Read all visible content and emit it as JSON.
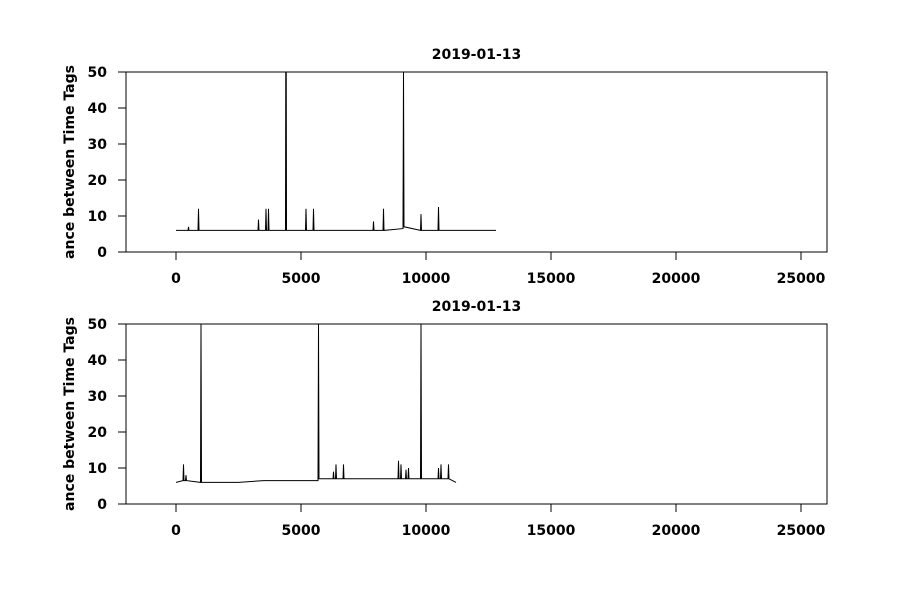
{
  "chart_data": [
    {
      "type": "line",
      "title": "2019-01-13",
      "y_label": "ance between Time Tags",
      "color": "#000000",
      "x": [
        0,
        480,
        500,
        520,
        880,
        900,
        920,
        3280,
        3300,
        3320,
        3580,
        3600,
        3620,
        3680,
        3700,
        3720,
        4380,
        4390,
        4400,
        4410,
        4420,
        5180,
        5200,
        5220,
        5480,
        5500,
        5520,
        7880,
        7900,
        7920,
        8280,
        8300,
        8320,
        9080,
        9100,
        9120,
        9780,
        9800,
        9820,
        10480,
        10500,
        10520,
        12800
      ],
      "values": [
        6,
        6,
        7,
        6,
        6,
        12,
        6,
        6,
        9,
        6,
        6,
        12,
        6,
        6,
        12,
        6,
        6,
        50,
        6,
        50,
        6,
        6,
        12,
        6,
        6,
        12,
        6,
        6,
        8.5,
        6,
        6,
        12,
        6,
        6.5,
        50,
        7,
        6,
        10.5,
        6,
        6,
        12.5,
        6,
        6
      ],
      "xlim": [
        -2000,
        26040
      ],
      "xticks": [
        0,
        5000,
        10000,
        15000,
        20000,
        25000
      ],
      "ylim": [
        0,
        50
      ],
      "yticks": [
        0,
        10,
        20,
        30,
        40,
        50
      ]
    },
    {
      "type": "line",
      "title": "2019-01-13",
      "y_label": "ance between Time Tags",
      "color": "#000000",
      "x": [
        0,
        280,
        300,
        320,
        380,
        400,
        420,
        980,
        1000,
        1020,
        2500,
        3500,
        4700,
        5680,
        5700,
        5720,
        6280,
        6300,
        6320,
        6380,
        6400,
        6420,
        6680,
        6700,
        6720,
        8880,
        8900,
        8920,
        8980,
        9000,
        9020,
        9180,
        9200,
        9220,
        9280,
        9300,
        9320,
        9780,
        9800,
        9820,
        10480,
        10500,
        10520,
        10580,
        10600,
        10620,
        10880,
        10900,
        10920,
        11200
      ],
      "values": [
        6,
        6.5,
        11,
        6.5,
        6.5,
        8,
        6.5,
        6,
        50,
        6,
        6,
        6.5,
        6.5,
        6.5,
        50,
        7,
        7,
        9,
        7,
        7,
        11,
        7,
        7,
        11,
        7,
        7,
        12,
        7,
        7,
        11,
        7,
        7,
        9.5,
        7,
        7,
        10,
        7,
        7,
        50,
        7,
        7,
        10,
        7,
        7,
        11,
        7,
        7,
        11,
        7,
        6
      ],
      "xlim": [
        -2000,
        26040
      ],
      "xticks": [
        0,
        5000,
        10000,
        15000,
        20000,
        25000
      ],
      "ylim": [
        0,
        50
      ],
      "yticks": [
        0,
        10,
        20,
        30,
        40,
        50
      ]
    }
  ]
}
